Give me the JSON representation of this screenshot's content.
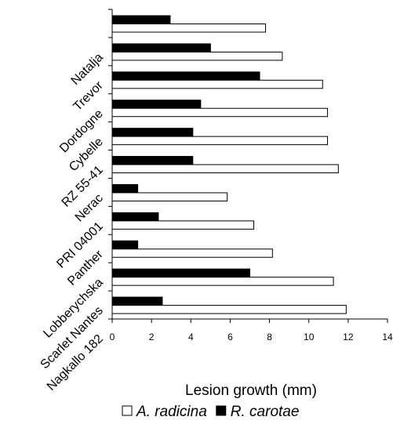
{
  "chart_data": {
    "type": "bar",
    "orientation": "horizontal",
    "categories": [
      "Natalja",
      "Trevor",
      "Dordogne",
      "Cybelle",
      "RZ 55-41",
      "Nerac",
      "PRI 04001",
      "Panther",
      "Lobberychska",
      "Scarlet Nantes",
      "Nagkallo 182"
    ],
    "series": [
      {
        "name": "R. carotae",
        "values": [
          2.95,
          5.0,
          7.5,
          4.5,
          4.1,
          4.1,
          1.3,
          2.35,
          1.3,
          7.0,
          2.55
        ]
      },
      {
        "name": "A. radicina",
        "values": [
          7.8,
          8.65,
          10.7,
          10.95,
          10.95,
          11.5,
          5.85,
          7.2,
          8.15,
          11.25,
          11.9
        ]
      }
    ],
    "xlabel": "Lesion growth (mm)",
    "ylabel": "",
    "title": "",
    "xlim": [
      0,
      14
    ],
    "xticks": [
      0,
      2,
      4,
      6,
      8,
      10,
      12,
      14
    ],
    "grid": false,
    "legend": {
      "position": "bottom",
      "entries": [
        {
          "label": "A. radicina",
          "fill": "#ffffff"
        },
        {
          "label": "R. carotae",
          "fill": "#000000"
        }
      ]
    },
    "colors": {
      "A. radicina": "#ffffff",
      "R. carotae": "#000000",
      "outline": "#000000"
    }
  }
}
